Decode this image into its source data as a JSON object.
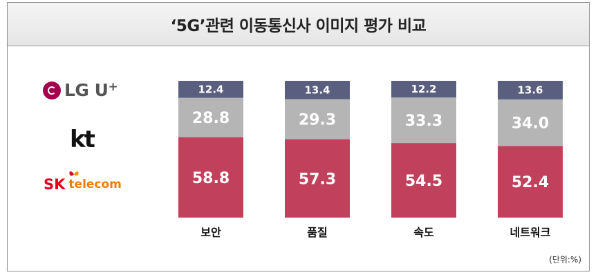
{
  "title": "‘5G’관련 이동통신사 이미지 평가 비교",
  "unit_label": "(단위:%)",
  "logos": {
    "lg": "LG U",
    "lg_plus": "+",
    "kt": "kt",
    "sk": "SK",
    "sk_sub": "telecom"
  },
  "colors": {
    "lg": "#5a5f80",
    "kt": "#b5b5b5",
    "sk": "#c1405b"
  },
  "chart_data": {
    "type": "bar",
    "stacked": true,
    "categories": [
      "보안",
      "품질",
      "속도",
      "네트워크"
    ],
    "series": [
      {
        "name": "SK telecom",
        "values": [
          58.8,
          57.3,
          54.5,
          52.4
        ]
      },
      {
        "name": "kt",
        "values": [
          28.8,
          29.3,
          33.3,
          34.0
        ]
      },
      {
        "name": "LG U+",
        "values": [
          12.4,
          13.4,
          12.2,
          13.6
        ]
      }
    ],
    "ylim": [
      0,
      100
    ],
    "grid": false
  }
}
